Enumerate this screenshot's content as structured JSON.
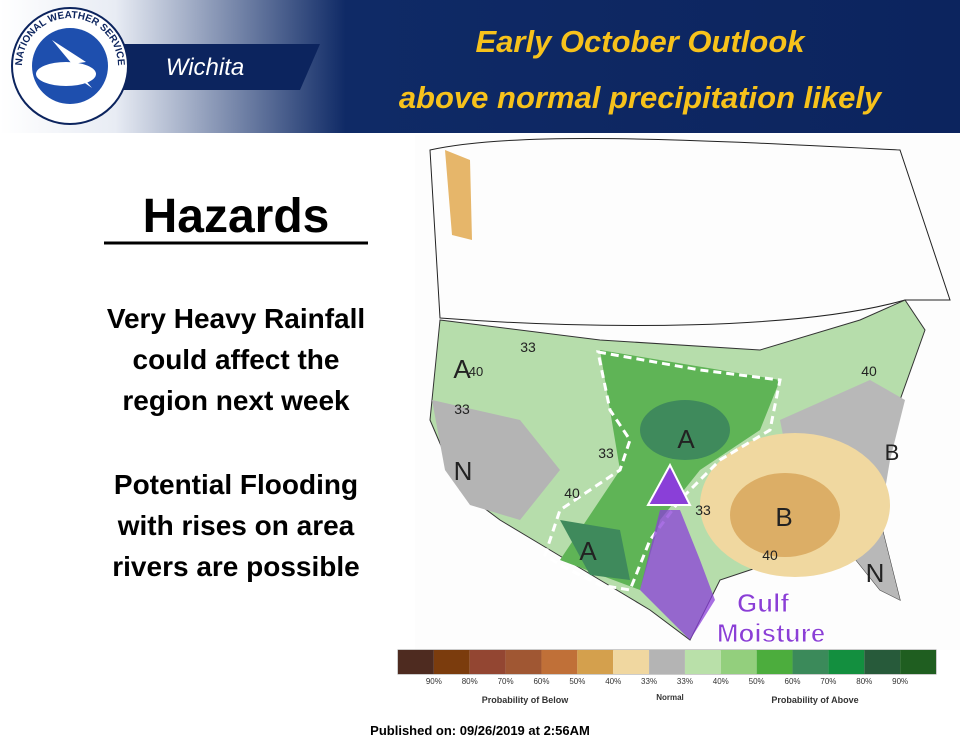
{
  "header": {
    "logo_text": "NATIONAL WEATHER SERVICE",
    "office": "Wichita",
    "title": "Early October Outlook",
    "subtitle": "above normal precipitation likely"
  },
  "hazards": {
    "heading": "Hazards",
    "items": [
      [
        "Very Heavy Rainfall",
        "could affect the",
        "region next week"
      ],
      [
        "Potential Flooding",
        "with rises on area",
        "rivers are possible"
      ]
    ]
  },
  "map": {
    "labels": [
      "A",
      "40",
      "33",
      "N",
      "33",
      "A",
      "33",
      "40",
      "A",
      "B",
      "40",
      "33",
      "40",
      "B",
      "N"
    ],
    "annotation": [
      "Gulf",
      "Moisture"
    ]
  },
  "legend": {
    "labels": [
      "90%",
      "80%",
      "70%",
      "60%",
      "50%",
      "40%",
      "33%",
      "33%",
      "40%",
      "50%",
      "60%",
      "70%",
      "80%",
      "90%"
    ],
    "below_title": "Probability of Below",
    "normal": "Normal",
    "above_title": "Probability of Above"
  },
  "footer": "Published on: 09/26/2019 at 2:56AM"
}
